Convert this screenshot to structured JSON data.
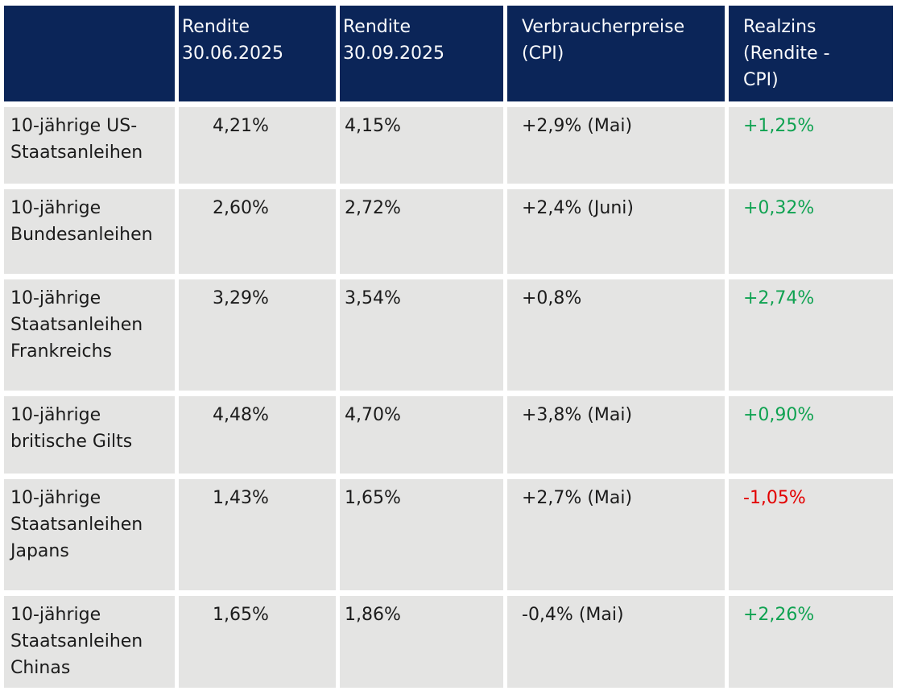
{
  "chart_data": {
    "type": "table",
    "title": "",
    "columns": [
      "",
      "Rendite 30.06.2025",
      "Rendite 30.09.2025",
      "Verbraucherpreise (CPI)",
      "Realzins (Rendite - CPI)"
    ],
    "rows": [
      [
        "10-jährige US-Staatsanleihen",
        "4,21%",
        "4,15%",
        "+2,9% (Mai)",
        "+1,25%"
      ],
      [
        "10-jährige Bundesanleihen",
        "2,60%",
        "2,72%",
        "+2,4% (Juni)",
        "+0,32%"
      ],
      [
        "10-jährige Staatsanleihen Frankreichs",
        "3,29%",
        "3,54%",
        "+0,8%",
        "+2,74%"
      ],
      [
        "10-jährige britische Gilts",
        "4,48%",
        "4,70%",
        "+3,8% (Mai)",
        "+0,90%"
      ],
      [
        "10-jährige Staatsanleihen Japans",
        "1,43%",
        "1,65%",
        "+2,7% (Mai)",
        "-1,05%"
      ],
      [
        "10-jährige Staatsanleihen Chinas",
        "1,65%",
        "1,86%",
        "-0,4% (Mai)",
        "+2,26%"
      ]
    ],
    "realzins_color_by_row": [
      "green",
      "green",
      "green",
      "green",
      "red",
      "green"
    ],
    "layout_hints": "dark navy header row, light gray body cells separated by white gutters, Realzins column colored by sign"
  },
  "table": {
    "headers": [
      {
        "label": ""
      },
      {
        "label": "Rendite\n30.06.2025"
      },
      {
        "label": "Rendite\n30.09.2025"
      },
      {
        "label": "Verbraucherpreise\n(CPI)"
      },
      {
        "label": "Realzins\n(Rendite -\nCPI)"
      }
    ],
    "rows": [
      {
        "label": "10-jährige US-\nStaatsanleihen",
        "yield_jun": "4,21%",
        "yield_sep": "4,15%",
        "cpi": "+2,9% (Mai)",
        "realzins": "+1,25%",
        "realzins_trend": "positive"
      },
      {
        "label": "10-jährige\nBundesanleihen",
        "yield_jun": "2,60%",
        "yield_sep": "2,72%",
        "cpi": "+2,4% (Juni)",
        "realzins": "+0,32%",
        "realzins_trend": "positive"
      },
      {
        "label": "10-jährige\nStaatsanleihen\nFrankreichs",
        "yield_jun": "3,29%",
        "yield_sep": "3,54%",
        "cpi": "+0,8%",
        "realzins": "+2,74%",
        "realzins_trend": "positive"
      },
      {
        "label": "10-jährige\nbritische Gilts",
        "yield_jun": "4,48%",
        "yield_sep": "4,70%",
        "cpi": "+3,8% (Mai)",
        "realzins": "+0,90%",
        "realzins_trend": "positive"
      },
      {
        "label": "10-jährige\nStaatsanleihen\nJapans",
        "yield_jun": "1,43%",
        "yield_sep": "1,65%",
        "cpi": "+2,7% (Mai)",
        "realzins": "-1,05%",
        "realzins_trend": "negative"
      },
      {
        "label": "10-jährige\nStaatsanleihen\nChinas",
        "yield_jun": "1,65%",
        "yield_sep": "1,86%",
        "cpi": "-0,4% (Mai)",
        "realzins": "+2,26%",
        "realzins_trend": "positive"
      }
    ]
  },
  "colors": {
    "header_bg": "#0b2558",
    "row_bg": "#e4e4e3",
    "positive": "#0fa251",
    "negative": "#e30000"
  }
}
